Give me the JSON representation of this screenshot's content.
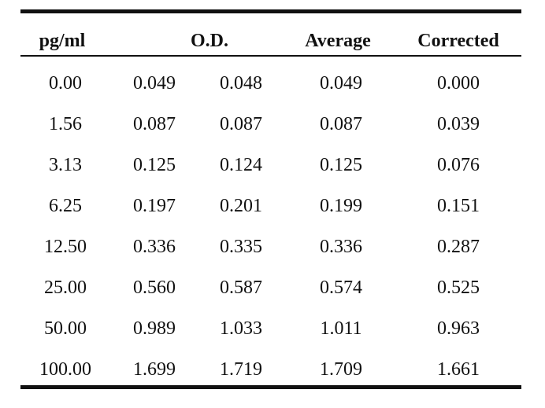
{
  "table": {
    "headers": {
      "concentration": "pg/ml",
      "od": "O.D.",
      "average": "Average",
      "corrected": "Corrected"
    },
    "rows": [
      {
        "conc": "0.00",
        "od1": "0.049",
        "od2": "0.048",
        "avg": "0.049",
        "corr": "0.000"
      },
      {
        "conc": "1.56",
        "od1": "0.087",
        "od2": "0.087",
        "avg": "0.087",
        "corr": "0.039"
      },
      {
        "conc": "3.13",
        "od1": "0.125",
        "od2": "0.124",
        "avg": "0.125",
        "corr": "0.076"
      },
      {
        "conc": "6.25",
        "od1": "0.197",
        "od2": "0.201",
        "avg": "0.199",
        "corr": "0.151"
      },
      {
        "conc": "12.50",
        "od1": "0.336",
        "od2": "0.335",
        "avg": "0.336",
        "corr": "0.287"
      },
      {
        "conc": "25.00",
        "od1": "0.560",
        "od2": "0.587",
        "avg": "0.574",
        "corr": "0.525"
      },
      {
        "conc": "50.00",
        "od1": "0.989",
        "od2": "1.033",
        "avg": "1.011",
        "corr": "0.963"
      },
      {
        "conc": "100.00",
        "od1": "1.699",
        "od2": "1.719",
        "avg": "1.709",
        "corr": "1.661"
      }
    ]
  }
}
